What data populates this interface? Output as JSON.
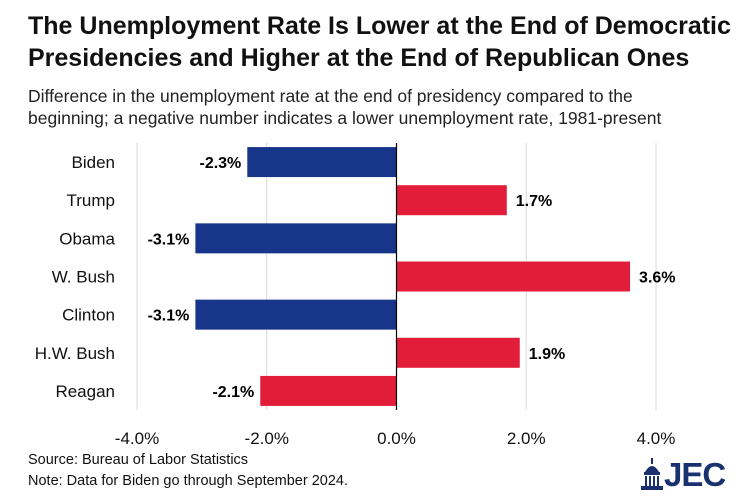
{
  "title_line1": "The Unemployment Rate Is Lower at the End of Democratic",
  "title_line2": "Presidencies and Higher at the End of Republican Ones",
  "subtitle_line1": "Difference in the unemployment rate at the end of presidency compared to the",
  "subtitle_line2": "beginning; a negative number indicates a lower unemployment rate, 1981-present",
  "source": "Source: Bureau of Labor Statistics",
  "note": "Note: Data for Biden go through September 2024.",
  "logo_text": "JEC",
  "colors": {
    "democratic": "#17368a",
    "republican": "#e21d3a",
    "grid": "#d9d9d9",
    "axis": "#000000"
  },
  "chart_data": {
    "type": "bar",
    "orientation": "horizontal",
    "categories": [
      "Biden",
      "Trump",
      "Obama",
      "W. Bush",
      "Clinton",
      "H.W. Bush",
      "Reagan"
    ],
    "values": [
      -2.3,
      1.7,
      -3.1,
      3.6,
      -3.1,
      1.9,
      -2.1
    ],
    "data_labels": [
      "-2.3%",
      "1.7%",
      "-3.1%",
      "3.6%",
      "-3.1%",
      "1.9%",
      "-2.1%"
    ],
    "bar_colors": [
      "#17368a",
      "#e21d3a",
      "#17368a",
      "#e21d3a",
      "#17368a",
      "#e21d3a",
      "#e21d3a"
    ],
    "xlim": [
      -4.0,
      4.0
    ],
    "xticks": [
      -4.0,
      -2.0,
      0.0,
      2.0,
      4.0
    ],
    "xtick_labels": [
      "-4.0%",
      "-2.0%",
      "0.0%",
      "2.0%",
      "4.0%"
    ],
    "grid": true,
    "xlabel": "",
    "ylabel": ""
  }
}
